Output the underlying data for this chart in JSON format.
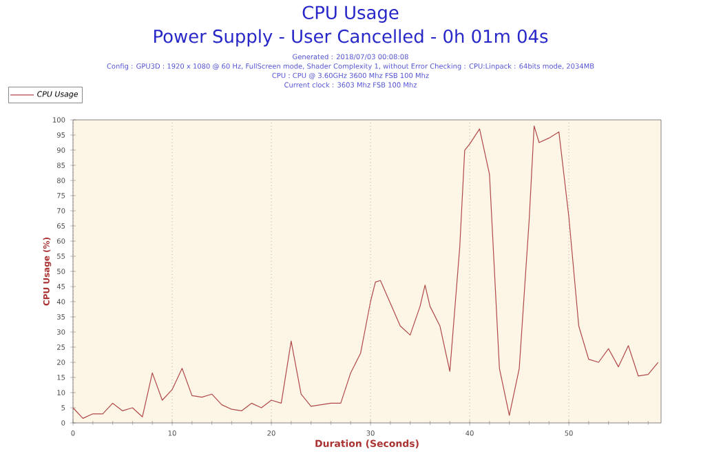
{
  "chart_data": {
    "type": "line",
    "title": "CPU Usage",
    "subtitle": "Power Supply - User Cancelled - 0h 01m 04s",
    "annotations": [
      "Generated : 2018/07/03 00:08:08",
      "Config : GPU3D : 1920 x 1080 @ 60 Hz, FullScreen mode, Shader Complexity 1, without Error Checking : CPU:Linpack : 64bits mode, 2034MB",
      "CPU : CPU @ 3.60GHz 3600 Mhz FSB 100 Mhz",
      "Current clock : 3603 Mhz FSB 100 Mhz"
    ],
    "xlabel": "Duration (Seconds)",
    "ylabel": "CPU Usage (%)",
    "series": [
      {
        "name": "CPU Usage",
        "color": "#b04848",
        "x": [
          0,
          1,
          2,
          3,
          4,
          5,
          6,
          7,
          8,
          9,
          10,
          11,
          12,
          13,
          14,
          15,
          16,
          17,
          18,
          19,
          20,
          21,
          22,
          23,
          24,
          25,
          26,
          27,
          28,
          29,
          30,
          30.5,
          31,
          32,
          33,
          34,
          35,
          35.5,
          36,
          37,
          38,
          39,
          39.5,
          40,
          41,
          42,
          43,
          44,
          45,
          46,
          46.5,
          47,
          48,
          49,
          50,
          51,
          52,
          53,
          54,
          55,
          56,
          57,
          58,
          59
        ],
        "values": [
          5,
          1.5,
          3,
          3,
          6.5,
          4,
          5,
          2,
          16.5,
          7.5,
          11,
          18,
          9,
          8.5,
          9.5,
          6,
          4.5,
          4,
          6.5,
          5,
          7.5,
          6.5,
          27,
          9.5,
          5.5,
          6,
          6.5,
          6.5,
          16.5,
          23,
          40,
          46.5,
          47,
          39.5,
          32,
          29,
          38.5,
          45.5,
          38.5,
          32,
          17,
          58,
          90,
          92,
          97,
          82,
          18,
          2.5,
          18,
          67,
          98,
          92.5,
          94,
          96,
          68,
          32,
          21,
          20,
          24.5,
          18.5,
          25.5,
          15.5,
          16,
          20
        ]
      }
    ],
    "xlim": [
      0,
      59.3
    ],
    "ylim": [
      0,
      100
    ],
    "xticks": [
      0,
      {
        "value": 2,
        "label": null
      },
      {
        "value": 4,
        "label": null
      },
      {
        "value": 6,
        "label": null
      },
      {
        "value": 8,
        "label": null
      },
      10,
      {
        "value": 12,
        "label": null
      },
      {
        "value": 14,
        "label": null
      },
      {
        "value": 16,
        "label": null
      },
      {
        "value": 18,
        "label": null
      },
      20,
      {
        "value": 22,
        "label": null
      },
      {
        "value": 24,
        "label": null
      },
      {
        "value": 26,
        "label": null
      },
      {
        "value": 28,
        "label": null
      },
      30,
      {
        "value": 32,
        "label": null
      },
      {
        "value": 34,
        "label": null
      },
      {
        "value": 36,
        "label": null
      },
      {
        "value": 38,
        "label": null
      },
      40,
      {
        "value": 42,
        "label": null
      },
      {
        "value": 44,
        "label": null
      },
      {
        "value": 46,
        "label": null
      },
      {
        "value": 48,
        "label": null
      },
      50,
      {
        "value": 52,
        "label": null
      },
      {
        "value": 54,
        "label": null
      },
      {
        "value": 56,
        "label": null
      },
      {
        "value": 58,
        "label": null
      }
    ],
    "yticks": [
      0,
      5,
      10,
      15,
      20,
      25,
      30,
      35,
      40,
      45,
      50,
      55,
      60,
      65,
      70,
      75,
      80,
      85,
      90,
      95,
      100
    ],
    "grid": "x",
    "legend": "top left",
    "marker": "none",
    "line_style": "solid"
  }
}
